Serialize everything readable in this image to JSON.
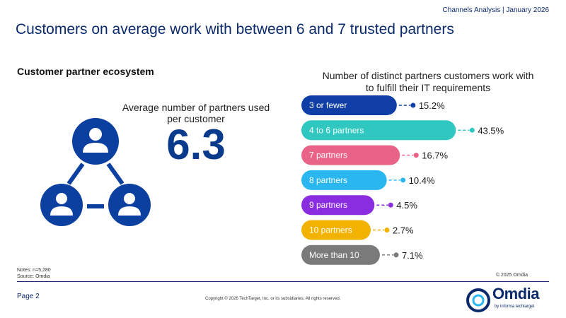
{
  "header": {
    "meta": "Channels Analysis | January 2026"
  },
  "page_title": "Customers on average work with between 6 and 7 trusted partners",
  "section_title": "Customer partner ecosystem",
  "avg": {
    "label": "Average number of partners used per customer",
    "value": "6.3"
  },
  "icons": {
    "network": "people-network-icon"
  },
  "chart_data": {
    "type": "bar",
    "orientation": "horizontal",
    "title": "Number of distinct partners customers work with to fulfill their IT requirements",
    "categories": [
      "3 or fewer",
      "4 to 6 partners",
      "7 partners",
      "8 partners",
      "9 partners",
      "10 partners",
      "More than 10"
    ],
    "values": [
      15.2,
      43.5,
      16.7,
      10.4,
      4.5,
      2.7,
      7.1
    ],
    "value_labels": [
      "15.2%",
      "43.5%",
      "16.7%",
      "10.4%",
      "4.5%",
      "2.7%",
      "7.1%"
    ],
    "colors": [
      "#0f3fa6",
      "#2fc7c0",
      "#e86385",
      "#2ab7f0",
      "#8a2ce0",
      "#f2b300",
      "#7a7a7a"
    ],
    "xlabel": "",
    "ylabel": "",
    "xlim": [
      0,
      45
    ],
    "grid": false,
    "legend": "none"
  },
  "notes": {
    "line1": "Notes: n=5,280",
    "line2": "Source: Omdia"
  },
  "chart_copyright": "© 2025 Omdia",
  "footer": {
    "page": "Page 2",
    "copyright": "Copyright © 2026 TechTarget, Inc. or its subsidiaries. All rights reserved."
  },
  "logo": {
    "name": "Omdia",
    "sub": "by informa techtarget"
  },
  "colors": {
    "brand": "#0a2a6b",
    "accent": "#0a3a8c",
    "icon": "#0b3fa0"
  }
}
